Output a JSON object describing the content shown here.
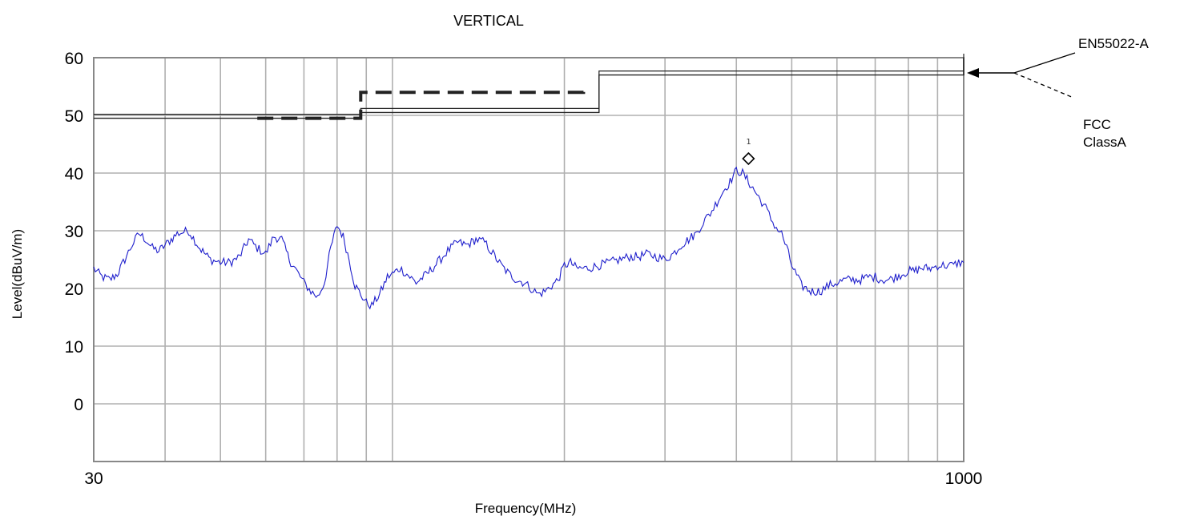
{
  "chart_data": {
    "type": "line",
    "title": "VERTICAL",
    "xlabel": "Frequency(MHz)",
    "ylabel": "Level(dBuV/m)",
    "x_scale": "log",
    "xlim": [
      30,
      1000
    ],
    "ylim": [
      -10,
      60
    ],
    "x_tick_labels": [
      "30",
      "1000"
    ],
    "y_ticks": [
      60,
      50,
      40,
      30,
      20,
      10,
      0
    ],
    "grid": true,
    "colors": {
      "trace": "#1e1ecc",
      "limit": "#222222",
      "grid": "#b0b0b0",
      "axis": "#888888"
    },
    "series": [
      {
        "name": "EN55022-A",
        "style": "solid-double",
        "x": [
          30,
          88,
          88,
          230,
          230,
          1000,
          1000
        ],
        "y": [
          49.5,
          49.5,
          50.5,
          50.5,
          57,
          57,
          60
        ]
      },
      {
        "name": "FCC ClassA",
        "style": "dashed",
        "x": [
          58,
          88,
          88,
          216,
          216
        ],
        "y": [
          49.5,
          49.5,
          54,
          54,
          55
        ]
      },
      {
        "name": "",
        "style": "trace",
        "x": [
          30,
          31,
          32,
          33,
          34,
          35,
          36,
          37,
          38,
          39,
          40,
          42,
          44,
          46,
          48,
          50,
          52,
          54,
          56,
          58,
          60,
          62,
          64,
          66,
          68,
          70,
          72,
          74,
          76,
          78,
          80,
          82,
          84,
          86,
          88,
          90,
          92,
          95,
          98,
          100,
          103,
          106,
          110,
          115,
          120,
          125,
          130,
          135,
          140,
          145,
          150,
          155,
          160,
          165,
          170,
          175,
          180,
          185,
          190,
          195,
          200,
          205,
          210,
          220,
          230,
          240,
          250,
          260,
          270,
          280,
          290,
          300,
          310,
          320,
          330,
          340,
          350,
          360,
          370,
          380,
          390,
          400,
          410,
          420,
          430,
          440,
          450,
          460,
          470,
          480,
          490,
          500,
          520,
          540,
          560,
          580,
          600,
          620,
          640,
          660,
          680,
          700,
          720,
          740,
          760,
          780,
          800,
          820,
          840,
          860,
          880,
          900,
          920,
          940,
          960,
          980,
          1000
        ],
        "y": [
          23.5,
          22,
          21.5,
          22.5,
          25,
          27.5,
          29.5,
          28.5,
          27,
          26.5,
          27.5,
          29.5,
          30,
          27,
          25,
          24.5,
          24.5,
          25.5,
          28.5,
          27,
          26,
          29,
          28.5,
          25,
          23,
          21,
          19.5,
          18.5,
          21,
          27,
          31,
          29,
          25,
          20.5,
          19,
          17.5,
          17,
          19,
          22,
          22.5,
          23.5,
          22.5,
          21,
          22.5,
          24.5,
          26.5,
          28,
          27.5,
          28.5,
          28,
          26,
          24,
          22.5,
          21.5,
          21,
          20,
          19,
          19.5,
          20.5,
          21.5,
          24,
          24.5,
          23.5,
          23.5,
          24,
          24.5,
          25,
          25.5,
          25.5,
          26,
          25.5,
          25,
          26,
          27.5,
          28.5,
          29.5,
          31.5,
          33,
          35,
          37,
          38.5,
          40.5,
          40,
          38.5,
          37,
          35.5,
          34,
          32,
          30.5,
          29.5,
          27,
          24,
          20.5,
          19.5,
          19.5,
          20.5,
          21,
          21.5,
          21.5,
          21.5,
          22,
          22,
          21.5,
          21.5,
          22,
          22.5,
          23,
          23,
          23.5,
          23.5,
          23.5,
          24,
          24,
          24,
          24,
          24.5,
          24.5
        ]
      }
    ],
    "markers": [
      {
        "label": "1",
        "x": 420,
        "y": 42.5
      }
    ],
    "annotations": [
      {
        "text": "EN55022-A"
      },
      {
        "text": "FCC"
      },
      {
        "text": "ClassA"
      }
    ]
  }
}
